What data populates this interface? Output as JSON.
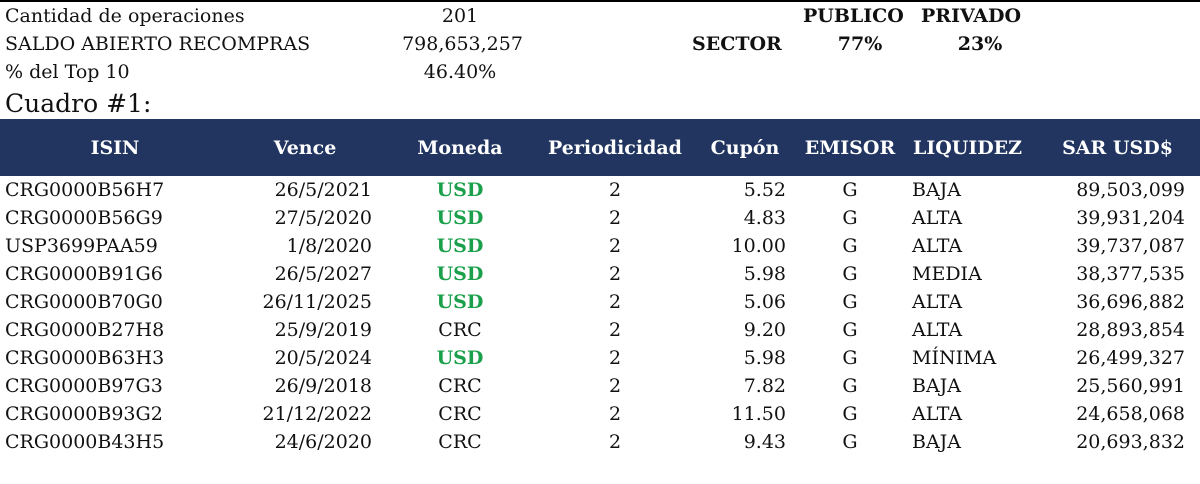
{
  "summary": {
    "ops_label": "Cantidad de operaciones",
    "ops_value": "201",
    "saldo_label": "SALDO ABIERTO RECOMPRAS",
    "saldo_value": "798,653,257",
    "top_label": "% del Top 10",
    "top_value": "46.40%"
  },
  "sector": {
    "label": "SECTOR",
    "publico_label": "PUBLICO",
    "privado_label": "PRIVADO",
    "publico_value": "77%",
    "privado_value": "23%"
  },
  "table_title": "Cuadro #1:",
  "colors": {
    "header_bg": "#213560",
    "usd_green": "#1aa04a"
  },
  "headers": [
    "ISIN",
    "Vence",
    "Moneda",
    "Periodicidad",
    "Cupón",
    "EMISOR",
    "LIQUIDEZ",
    "SAR USD$"
  ],
  "rows": [
    [
      "CRG0000B56H7",
      "26/5/2021",
      "USD",
      "2",
      "5.52",
      "G",
      "BAJA",
      "89,503,099"
    ],
    [
      "CRG0000B56G9",
      "27/5/2020",
      "USD",
      "2",
      "4.83",
      "G",
      "ALTA",
      "39,931,204"
    ],
    [
      "USP3699PAA59",
      "1/8/2020",
      "USD",
      "2",
      "10.00",
      "G",
      "ALTA",
      "39,737,087"
    ],
    [
      "CRG0000B91G6",
      "26/5/2027",
      "USD",
      "2",
      "5.98",
      "G",
      "MEDIA",
      "38,377,535"
    ],
    [
      "CRG0000B70G0",
      "26/11/2025",
      "USD",
      "2",
      "5.06",
      "G",
      "ALTA",
      "36,696,882"
    ],
    [
      "CRG0000B27H8",
      "25/9/2019",
      "CRC",
      "2",
      "9.20",
      "G",
      "ALTA",
      "28,893,854"
    ],
    [
      "CRG0000B63H3",
      "20/5/2024",
      "USD",
      "2",
      "5.98",
      "G",
      "MÍNIMA",
      "26,499,327"
    ],
    [
      "CRG0000B97G3",
      "26/9/2018",
      "CRC",
      "2",
      "7.82",
      "G",
      "BAJA",
      "25,560,991"
    ],
    [
      "CRG0000B93G2",
      "21/12/2022",
      "CRC",
      "2",
      "11.50",
      "G",
      "ALTA",
      "24,658,068"
    ],
    [
      "CRG0000B43H5",
      "24/6/2020",
      "CRC",
      "2",
      "9.43",
      "G",
      "BAJA",
      "20,693,832"
    ]
  ]
}
